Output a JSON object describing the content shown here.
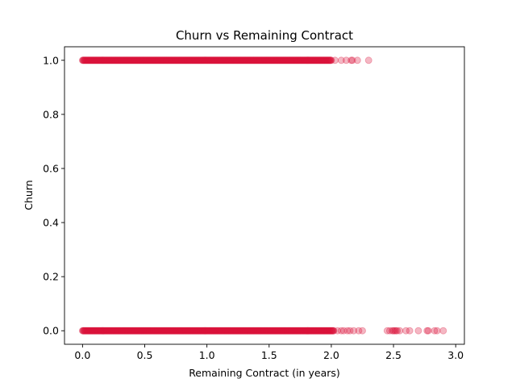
{
  "chart_data": {
    "type": "scatter",
    "title": "Churn vs Remaining Contract",
    "xlabel": "Remaining Contract (in years)",
    "ylabel": "Churn",
    "xlim": [
      -0.145,
      3.07
    ],
    "ylim": [
      -0.05,
      1.05
    ],
    "xticks": [
      "0.0",
      "0.5",
      "1.0",
      "1.5",
      "2.0",
      "2.5",
      "3.0"
    ],
    "yticks": [
      "0.0",
      "0.2",
      "0.4",
      "0.6",
      "0.8",
      "1.0"
    ],
    "grid": false,
    "legend": "none",
    "marker_color": "#dc143c",
    "marker_alpha": 0.3,
    "series": [
      {
        "churn": 1,
        "dense_range": [
          0.0,
          2.0
        ],
        "sparse_x": [
          2.03,
          2.08,
          2.12,
          2.16,
          2.17,
          2.21,
          2.3
        ]
      },
      {
        "churn": 0,
        "dense_range": [
          0.0,
          2.02
        ],
        "sparse_x": [
          2.05,
          2.08,
          2.1,
          2.13,
          2.15,
          2.18,
          2.22,
          2.25,
          2.45,
          2.47,
          2.49,
          2.5,
          2.51,
          2.52,
          2.53,
          2.55,
          2.6,
          2.63,
          2.7,
          2.77,
          2.78,
          2.83,
          2.85,
          2.9
        ]
      }
    ]
  }
}
